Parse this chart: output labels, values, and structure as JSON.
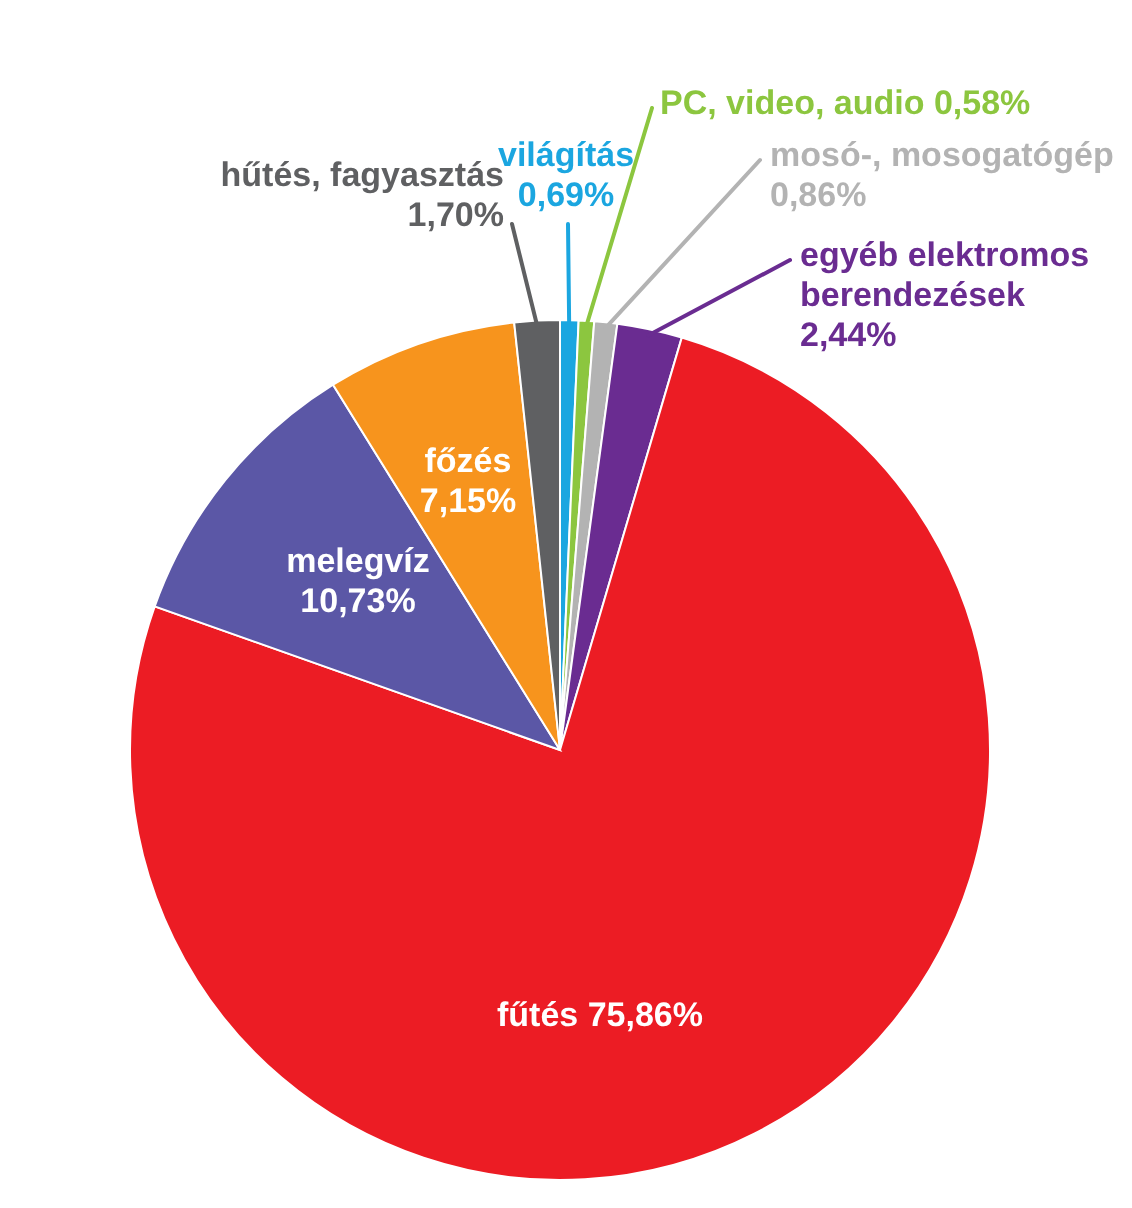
{
  "chart_data": {
    "type": "pie",
    "categories": [
      "világítás",
      "PC, video, audio",
      "mosó-, mosogatógép",
      "egyéb elektromos berendezések",
      "fűtés",
      "melegvíz",
      "főzés",
      "hűtés, fagyasztás"
    ],
    "values": [
      0.69,
      0.58,
      0.86,
      2.44,
      75.86,
      10.73,
      7.15,
      1.7
    ],
    "colors": [
      "#1ba6e0",
      "#8cc63f",
      "#b3b3b3",
      "#6a2c91",
      "#ec1c24",
      "#5b57a6",
      "#f7941d",
      "#5f6062"
    ],
    "value_labels": [
      "0,69%",
      "0,58%",
      "0,86%",
      "2,44%",
      "75,86%",
      "10,73%",
      "7,15%",
      "1,70%"
    ]
  }
}
